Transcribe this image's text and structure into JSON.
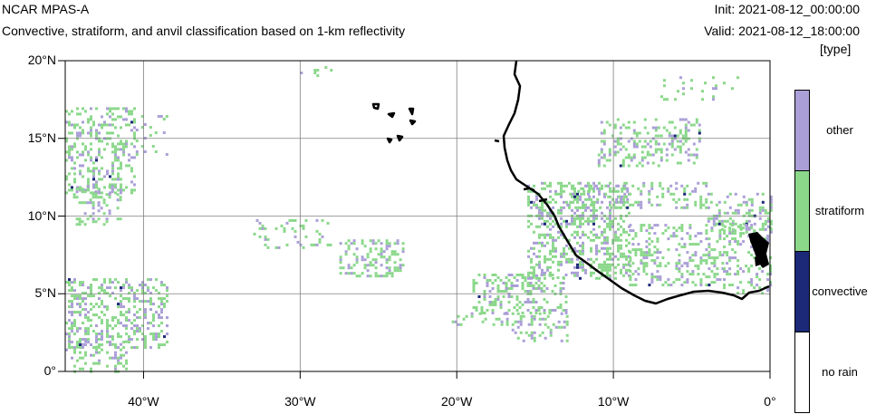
{
  "header": {
    "model": "NCAR MPAS-A",
    "subtitle": "Convective, stratiform, and anvil classification based on 1-km reflectivity",
    "init": "Init: 2021-08-12_00:00:00",
    "valid": "Valid: 2021-08-12_18:00:00",
    "units": "[type]"
  },
  "axes": {
    "lat_labels": [
      "20°N",
      "15°N",
      "10°N",
      "5°N",
      "0°"
    ],
    "lat_values": [
      20,
      15,
      10,
      5,
      0
    ],
    "lon_labels": [
      "40°W",
      "30°W",
      "20°W",
      "10°W",
      "0°"
    ],
    "lon_values": [
      -40,
      -30,
      -20,
      -10,
      0
    ],
    "lon_range": [
      -45,
      0
    ],
    "lat_range": [
      0,
      20
    ],
    "grid": true
  },
  "legend": {
    "classes": [
      {
        "label": "other",
        "color": "#ab9fd7"
      },
      {
        "label": "stratiform",
        "color": "#8bd88b"
      },
      {
        "label": "convective",
        "color": "#1c2878"
      },
      {
        "label": "no rain",
        "color": "#ffffff"
      }
    ]
  },
  "colors": {
    "coast": "#000000",
    "grid": "#808080"
  }
}
